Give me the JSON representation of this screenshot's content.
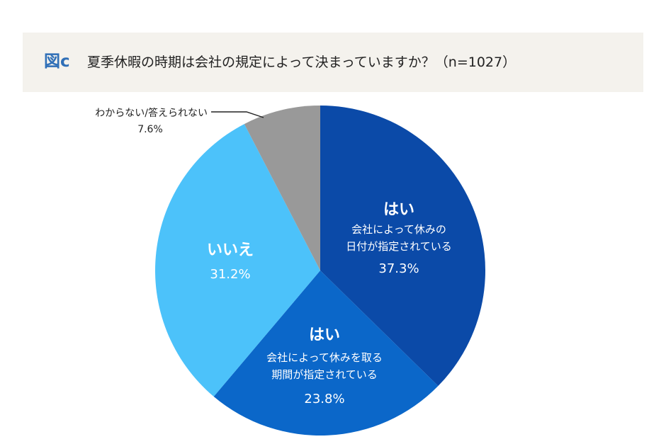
{
  "figure_label": "図c",
  "chart_data": {
    "type": "pie",
    "title": "夏季休暇の時期は会社の規定によって決まっていますか？（n=1027）",
    "slices": [
      {
        "label": "はい",
        "sublabel": [
          "会社によって休みの",
          "日付が指定されている"
        ],
        "value": 37.3,
        "display": "37.3%",
        "color": "#0b4aa8"
      },
      {
        "label": "はい",
        "sublabel": [
          "会社によって休みを取る",
          "期間が指定されている"
        ],
        "value": 23.8,
        "display": "23.8%",
        "color": "#0b67c9"
      },
      {
        "label": "いいえ",
        "sublabel": [],
        "value": 31.2,
        "display": "31.2%",
        "color": "#4cc2fa"
      },
      {
        "label": "わからない/答えられない",
        "sublabel": [],
        "value": 7.6,
        "display": "7.6%",
        "color": "#999999"
      }
    ],
    "start": "12 o'clock",
    "direction": "clockwise",
    "legend": "none"
  }
}
